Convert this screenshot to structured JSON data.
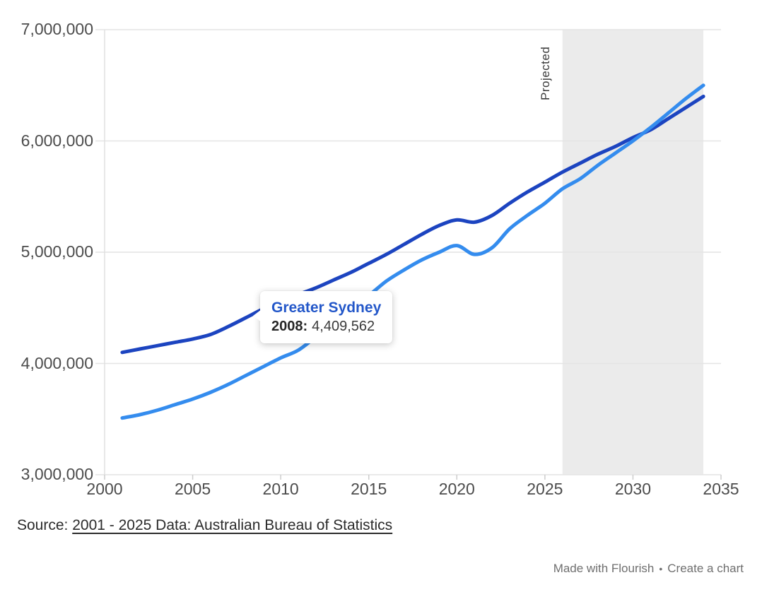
{
  "chart_data": {
    "type": "line",
    "title": "",
    "xlabel": "",
    "ylabel": "",
    "xlim": [
      2000,
      2035
    ],
    "ylim": [
      3000000,
      7000000
    ],
    "grid": "horizontal",
    "years": [
      2001,
      2002,
      2003,
      2004,
      2005,
      2006,
      2007,
      2008,
      2009,
      2010,
      2011,
      2012,
      2013,
      2014,
      2015,
      2016,
      2017,
      2018,
      2019,
      2020,
      2021,
      2022,
      2023,
      2024,
      2025,
      2026,
      2027,
      2028,
      2029,
      2030,
      2031,
      2032,
      2033,
      2034
    ],
    "series": [
      {
        "name": "Greater Sydney",
        "color": "#1c44c0",
        "values": [
          4100000,
          4130000,
          4160000,
          4190000,
          4220000,
          4260000,
          4330000,
          4409562,
          4490000,
          4560000,
          4620000,
          4680000,
          4750000,
          4820000,
          4900000,
          4980000,
          5070000,
          5160000,
          5240000,
          5290000,
          5270000,
          5330000,
          5440000,
          5540000,
          5630000,
          5720000,
          5800000,
          5880000,
          5950000,
          6030000,
          6100000,
          6200000,
          6300000,
          6400000
        ]
      },
      {
        "name": "",
        "color": "#348cee",
        "values": [
          3510000,
          3540000,
          3580000,
          3630000,
          3680000,
          3740000,
          3810000,
          3890000,
          3970000,
          4050000,
          4120000,
          4240000,
          4360000,
          4490000,
          4610000,
          4740000,
          4840000,
          4930000,
          5000000,
          5060000,
          4980000,
          5040000,
          5210000,
          5330000,
          5440000,
          5570000,
          5660000,
          5780000,
          5890000,
          6000000,
          6120000,
          6250000,
          6380000,
          6500000
        ]
      }
    ],
    "y_ticks": [
      {
        "value": 7000000,
        "label": "7,000,000"
      },
      {
        "value": 6000000,
        "label": "6,000,000"
      },
      {
        "value": 5000000,
        "label": "5,000,000"
      },
      {
        "value": 4000000,
        "label": "4,000,000"
      },
      {
        "value": 3000000,
        "label": "3,000,000"
      }
    ],
    "x_ticks": [
      {
        "value": 2000,
        "label": "2000"
      },
      {
        "value": 2005,
        "label": "2005"
      },
      {
        "value": 2010,
        "label": "2010"
      },
      {
        "value": 2015,
        "label": "2015"
      },
      {
        "value": 2020,
        "label": "2020"
      },
      {
        "value": 2025,
        "label": "2025"
      },
      {
        "value": 2030,
        "label": "2030"
      },
      {
        "value": 2035,
        "label": "2035"
      }
    ],
    "projection": {
      "label": "Projected",
      "start": 2026,
      "end": 2034,
      "fill": "#ebebeb"
    },
    "colors": {
      "gridline": "#e4e4e4",
      "axis": "#e0e0e0",
      "tick": "#cccccc",
      "axis_text": "#4c4c4c"
    }
  },
  "tooltip": {
    "series": "Greater Sydney",
    "year_label": "2008:",
    "value": "4,409,562",
    "year": 2008,
    "point_value": 4409562,
    "title_color": "#2357c9"
  },
  "source": {
    "prefix": "Source: ",
    "link_text": "2001 - 2025 Data: Australian Bureau of Statistics"
  },
  "footer": {
    "made_with": "Made with Flourish",
    "separator": "•",
    "create_chart": "Create a chart"
  }
}
